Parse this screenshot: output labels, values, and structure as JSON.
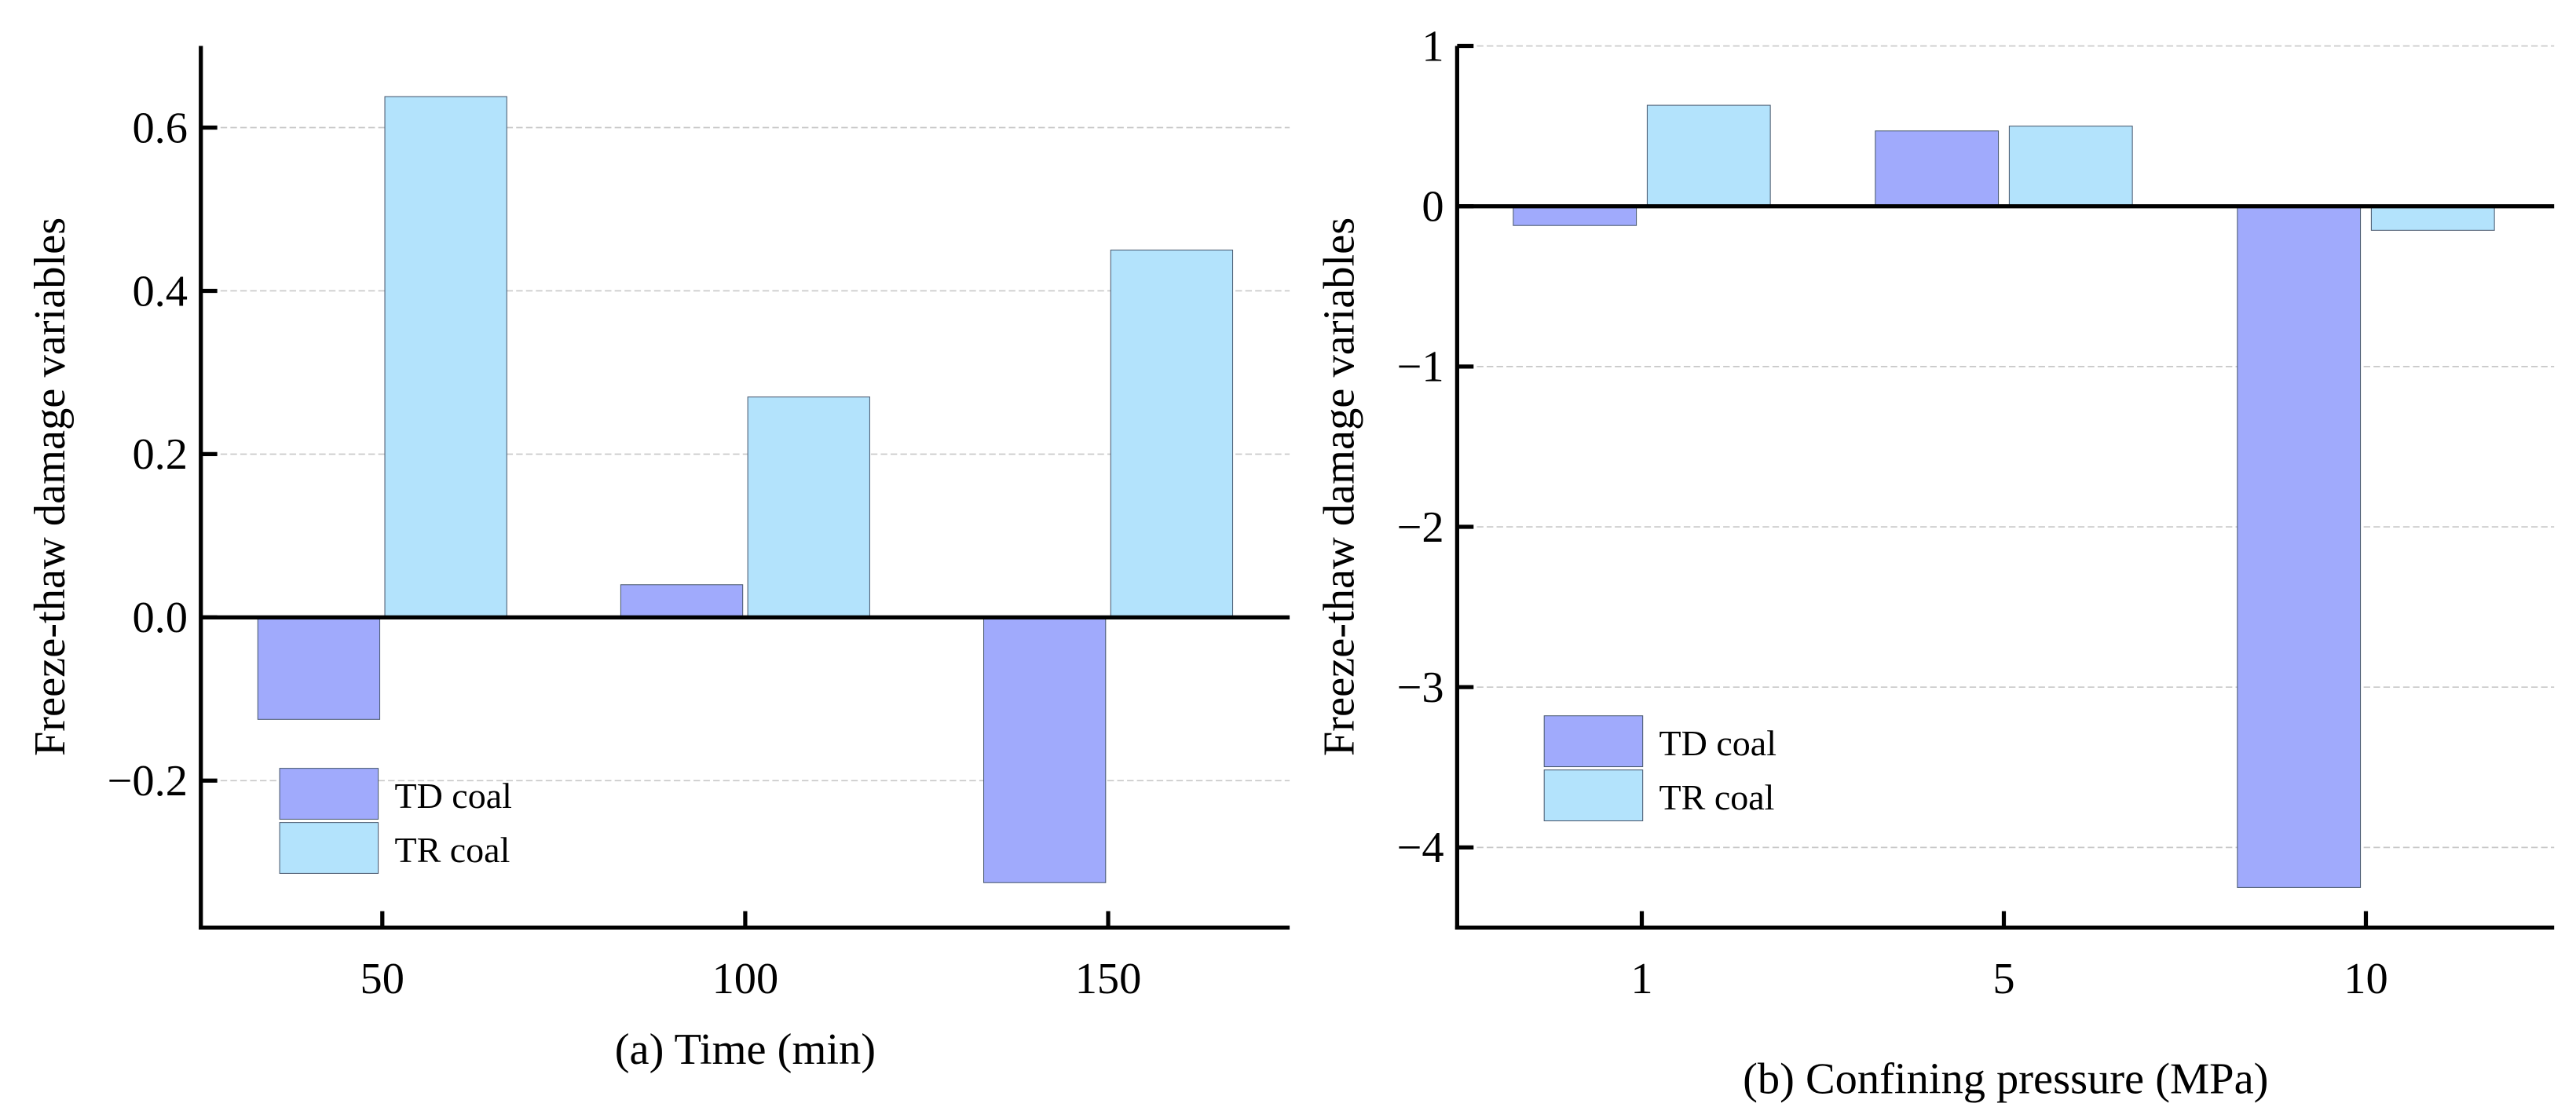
{
  "chart_data": [
    {
      "type": "bar",
      "panel": "a",
      "title": "",
      "xlabel": "(a) Time (min)",
      "ylabel": "Freeze-thaw damage variables",
      "categories": [
        "50",
        "100",
        "150"
      ],
      "x": [
        50,
        100,
        150
      ],
      "xlim": [
        25,
        175
      ],
      "ylim": [
        -0.38,
        0.7
      ],
      "yticks": [
        -0.2,
        0.0,
        0.2,
        0.4,
        0.6
      ],
      "ytick_labels": [
        "−0.2",
        "0.0",
        "0.2",
        "0.4",
        "0.6"
      ],
      "grid": true,
      "legend_position": "bottom-left",
      "series": [
        {
          "name": "TD coal",
          "values": [
            -0.125,
            0.04,
            -0.325
          ],
          "color": "#a0aafc"
        },
        {
          "name": "TR coal",
          "values": [
            0.638,
            0.27,
            0.45
          ],
          "color": "#b3e3fc"
        }
      ]
    },
    {
      "type": "bar",
      "panel": "b",
      "title": "",
      "xlabel": "(b) Confining pressure (MPa)",
      "ylabel": "Freeze-thaw damage variables",
      "categories": [
        "1",
        "5",
        "10"
      ],
      "xlim": [
        0.49,
        3.52
      ],
      "ylim": [
        -4.5,
        1
      ],
      "yticks": [
        -4,
        -3,
        -2,
        -1,
        0,
        1
      ],
      "ytick_labels": [
        "−4",
        "−3",
        "−2",
        "−1",
        "0",
        "1"
      ],
      "grid": true,
      "legend_position": "bottom-left",
      "series": [
        {
          "name": "TD coal",
          "values": [
            -0.12,
            0.47,
            -4.25
          ],
          "color": "#a0aafc"
        },
        {
          "name": "TR coal",
          "values": [
            0.63,
            0.5,
            -0.15
          ],
          "color": "#b3e3fc"
        }
      ]
    }
  ]
}
